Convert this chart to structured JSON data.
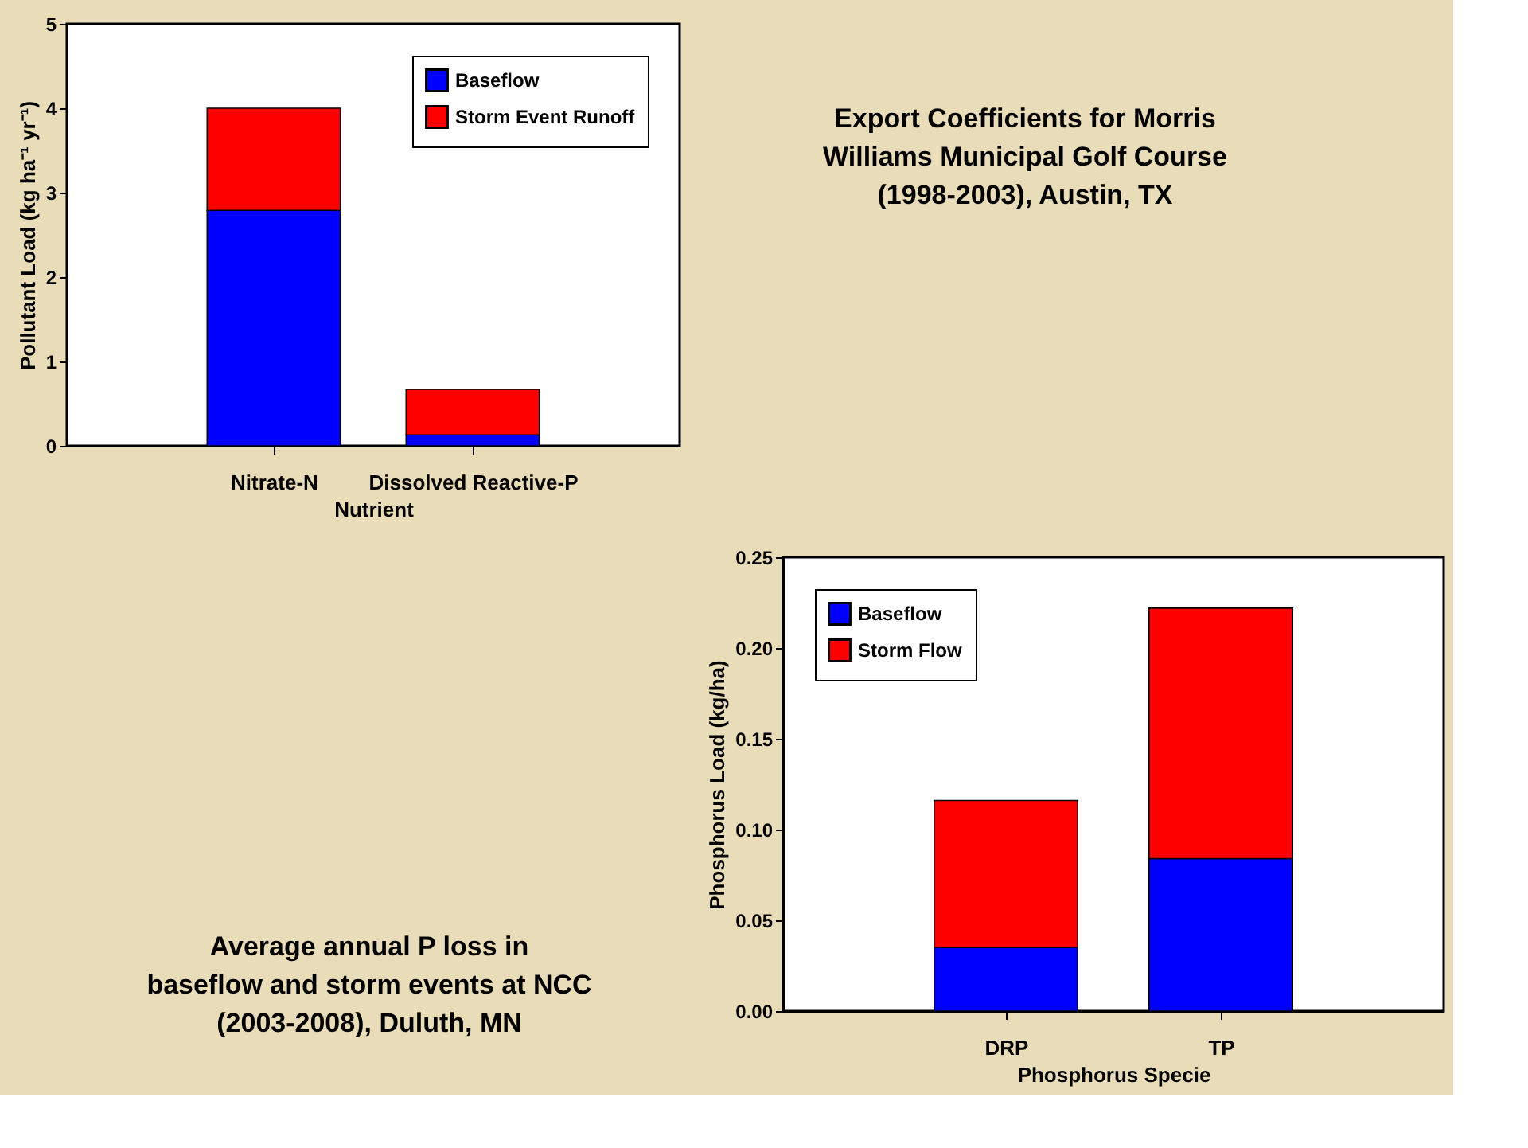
{
  "chart_data": [
    {
      "type": "bar",
      "xlabel": "Nutrient",
      "ylabel": "Pollutant Load (kg ha⁻¹ yr⁻¹)",
      "categories": [
        "Nitrate-N",
        "Dissolved Reactive-P"
      ],
      "stacked": true,
      "series": [
        {
          "name": "Baseflow",
          "color": "#0000ff",
          "values": [
            2.79,
            0.13
          ]
        },
        {
          "name": "Storm Event Runoff",
          "color": "#ff0000",
          "values": [
            1.21,
            0.54
          ]
        }
      ],
      "ylim": [
        0,
        5
      ],
      "yticks": [
        0,
        1,
        2,
        3,
        4,
        5
      ],
      "legend": "top right",
      "grid": false
    },
    {
      "type": "other",
      "title": "Export Coefficients for Morris Williams Municipal Golf Course (1998-2003), Austin, TX"
    },
    {
      "type": "other",
      "title": "Average annual P loss in baseflow and storm events at NCC (2003-2008), Duluth, MN"
    },
    {
      "type": "bar",
      "xlabel": "Phosphorus Specie",
      "ylabel": "Phosphorus Load (kg/ha)",
      "categories": [
        "DRP",
        "TP"
      ],
      "stacked": true,
      "series": [
        {
          "name": "Baseflow",
          "color": "#0000ff",
          "values": [
            0.035,
            0.084
          ]
        },
        {
          "name": "Storm Flow",
          "color": "#ff0000",
          "values": [
            0.081,
            0.138
          ]
        }
      ],
      "ylim": [
        0,
        0.25
      ],
      "yticks": [
        {
          "value": 0,
          "label": "0.00"
        },
        {
          "value": 0.05,
          "label": "0.05"
        },
        {
          "value": 0.1,
          "label": "0.10"
        },
        {
          "value": 0.15,
          "label": "0.15"
        },
        {
          "value": 0.2,
          "label": "0.20"
        },
        {
          "value": 0.25,
          "label": "0.25"
        }
      ],
      "legend": "top left",
      "grid": false
    }
  ]
}
